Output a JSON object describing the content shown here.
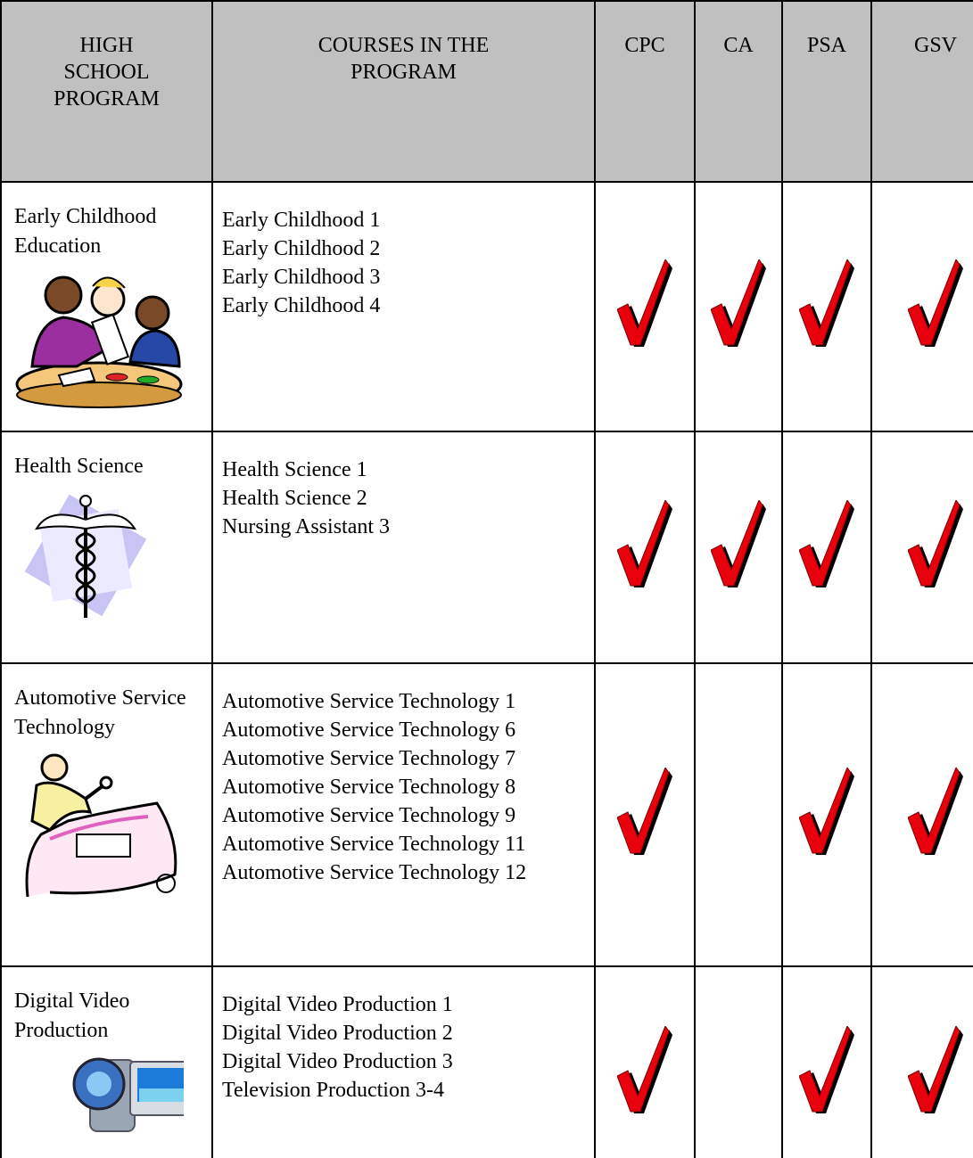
{
  "table": {
    "columns": [
      "HIGH SCHOOL PROGRAM",
      "COURSES IN THE PROGRAM",
      "CPC",
      "CA",
      "PSA",
      "GSV"
    ],
    "rows": [
      {
        "program": "Early Childhood Education",
        "courses": [
          "Early Childhood 1",
          "Early Childhood 2",
          "Early Childhood 3",
          "Early Childhood 4"
        ],
        "checks": [
          true,
          true,
          true,
          true
        ]
      },
      {
        "program": "Health Science",
        "courses": [
          "Health Science 1",
          "Health Science 2",
          "Nursing Assistant 3"
        ],
        "checks": [
          true,
          true,
          true,
          true
        ]
      },
      {
        "program": "Automotive Service Technology",
        "courses": [
          "Automotive Service Technology 1",
          "Automotive Service Technology 6",
          "Automotive Service Technology 7",
          "Automotive Service Technology 8",
          "Automotive Service Technology 9",
          "Automotive Service Technology 11",
          "Automotive Service Technology 12"
        ],
        "checks": [
          true,
          false,
          true,
          true
        ]
      },
      {
        "program": "Digital Video Production",
        "courses": [
          "Digital Video Production 1",
          "Digital Video Production 2",
          "Digital Video Production 3",
          "Television Production 3-4"
        ],
        "checks": [
          true,
          false,
          true,
          true
        ]
      }
    ]
  }
}
